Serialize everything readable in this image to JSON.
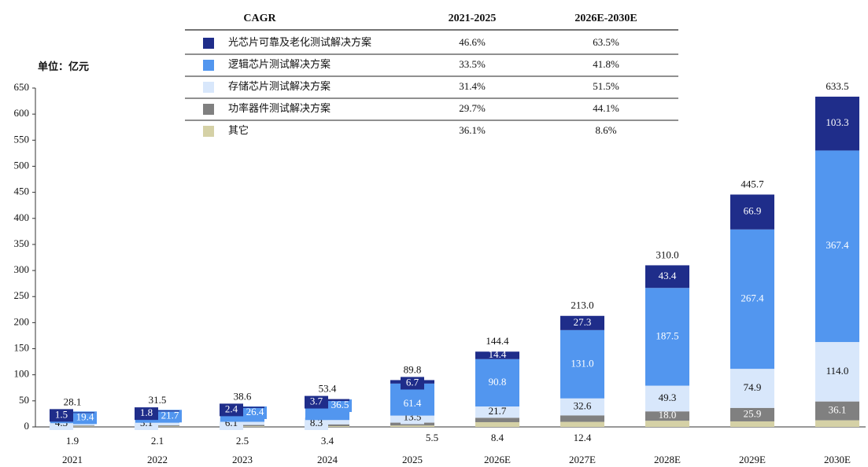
{
  "chart_data": {
    "type": "stacked_bar",
    "unit": "单位：亿元",
    "cagr_header": [
      "CAGR",
      "2021-2025",
      "2026E-2030E"
    ],
    "categories": [
      "2021",
      "2022",
      "2023",
      "2024",
      "2025",
      "2026E",
      "2027E",
      "2028E",
      "2029E",
      "2030E"
    ],
    "series": [
      {
        "name": "光芯片可靠及老化测试解决方案",
        "color": "#1f2d8a",
        "cagr": [
          "46.6%",
          "63.5%"
        ],
        "values": [
          1.5,
          1.8,
          2.4,
          3.7,
          6.7,
          14.4,
          27.3,
          43.4,
          66.9,
          103.3
        ]
      },
      {
        "name": "逻辑芯片测试解决方案",
        "color": "#5296ef",
        "cagr": [
          "33.5%",
          "41.8%"
        ],
        "values": [
          19.4,
          21.7,
          26.4,
          36.5,
          61.4,
          90.8,
          131.0,
          187.5,
          267.4,
          367.4
        ],
        "value_labels": [
          "19.4",
          "21.7",
          "26.4",
          "36.5",
          "61.4",
          "90.8",
          "131.0",
          "187.5",
          "267.4",
          "367.4"
        ]
      },
      {
        "name": "存储芯片测试解决方案",
        "color": "#d8e7fb",
        "cagr": [
          "31.4%",
          "51.5%"
        ],
        "values": [
          4.5,
          5.1,
          6.1,
          8.3,
          13.5,
          21.7,
          32.6,
          49.3,
          74.9,
          114.0
        ],
        "value_labels": [
          "4.5",
          "5.1",
          "6.1",
          "8.3",
          "13.5",
          "21.7",
          "32.6",
          "49.3",
          "74.9",
          "114.0"
        ]
      },
      {
        "name": "功率器件测试解决方案",
        "color": "#808080",
        "cagr": [
          "29.7%",
          "44.1%"
        ],
        "values": [
          1.9,
          2.1,
          2.5,
          3.4,
          5.5,
          8.4,
          12.4,
          18.0,
          25.9,
          36.1
        ],
        "value_labels": [
          "1.9",
          "2.1",
          "2.5",
          "3.4",
          "5.5",
          "8.4",
          "12.4",
          "18.0",
          "25.9",
          "36.1"
        ]
      },
      {
        "name": "其它",
        "color": "#d5d1a6",
        "cagr": [
          "36.1%",
          "8.6%"
        ],
        "values": [
          0.8,
          0.8,
          1.2,
          1.5,
          2.7,
          9.1,
          9.7,
          11.8,
          10.6,
          12.7
        ]
      }
    ],
    "totals": [
      28.1,
      31.5,
      38.6,
      53.4,
      89.8,
      144.4,
      213.0,
      310.0,
      445.7,
      633.5
    ],
    "total_labels": [
      "28.1",
      "31.5",
      "38.6",
      "53.4",
      "89.8",
      "144.4",
      "213.0",
      "310.0",
      "445.7",
      "633.5"
    ],
    "ylim": [
      0,
      650
    ],
    "yticks": [
      0,
      50,
      100,
      150,
      200,
      250,
      300,
      350,
      400,
      450,
      500,
      550,
      600,
      650
    ]
  }
}
